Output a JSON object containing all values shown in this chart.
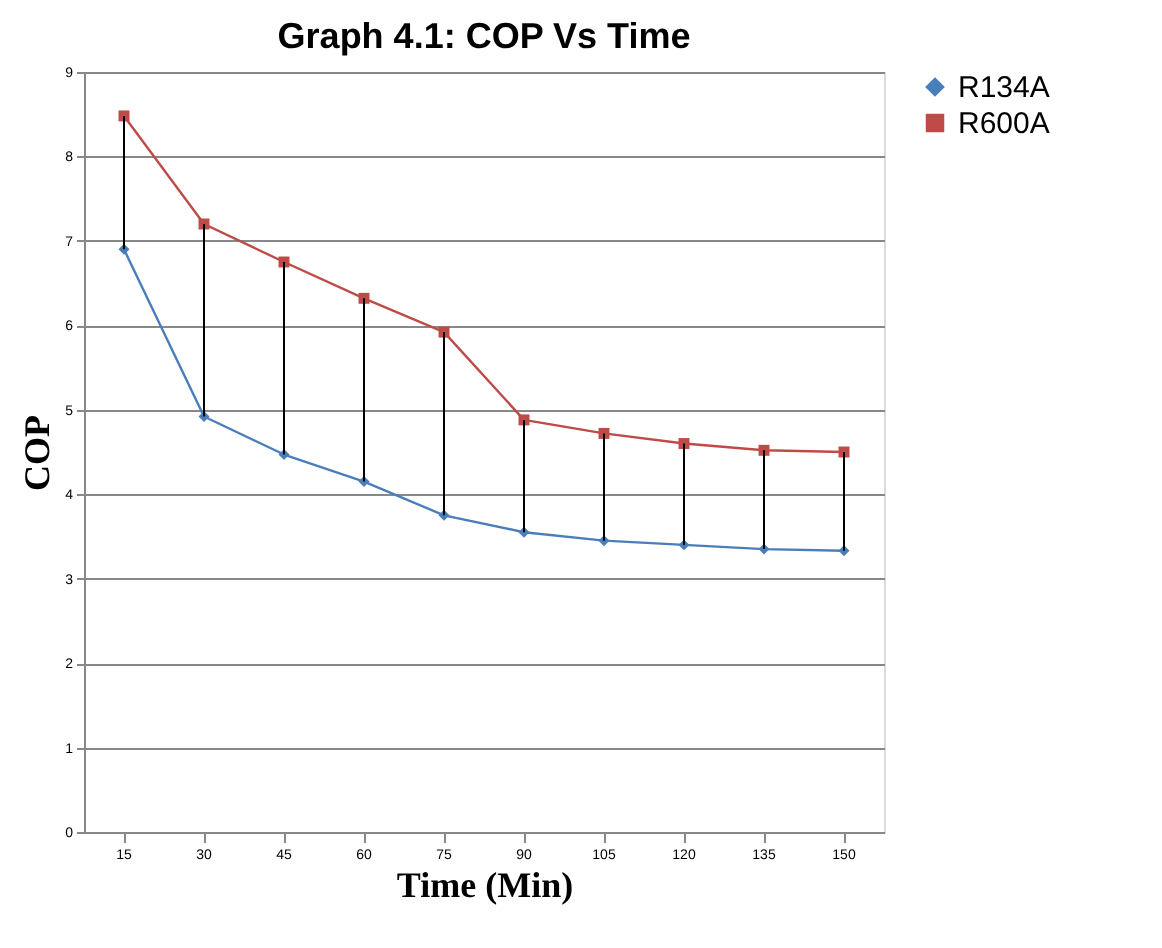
{
  "chart_data": {
    "type": "line",
    "title": "Graph 4.1: COP Vs Time",
    "xlabel": "Time (Min)",
    "ylabel": "COP",
    "categories": [
      "15",
      "30",
      "45",
      "60",
      "75",
      "90",
      "105",
      "120",
      "135",
      "150"
    ],
    "series": [
      {
        "name": "R134A",
        "color": "#4a7ebb",
        "marker": "diamond",
        "values": [
          6.9,
          4.92,
          4.47,
          4.15,
          3.75,
          3.55,
          3.45,
          3.4,
          3.35,
          3.33
        ],
        "errors": [
          [
            6.9,
            8.48
          ],
          [
            4.92,
            7.2
          ],
          [
            4.47,
            6.75
          ],
          [
            4.15,
            6.32
          ],
          [
            3.75,
            5.92
          ],
          [
            3.55,
            4.88
          ],
          [
            3.45,
            4.72
          ],
          [
            3.4,
            4.6
          ],
          [
            3.35,
            4.52
          ],
          [
            3.33,
            4.5
          ]
        ]
      },
      {
        "name": "R600A",
        "color": "#be4b48",
        "marker": "square",
        "values": [
          8.48,
          7.2,
          6.75,
          6.32,
          5.92,
          4.88,
          4.72,
          4.6,
          4.52,
          4.5
        ]
      }
    ],
    "ylim": [
      0,
      9
    ],
    "yticks": [
      0,
      1,
      2,
      3,
      4,
      5,
      6,
      7,
      8,
      9
    ],
    "grid": "y",
    "legend": "right",
    "line_style": "solid"
  }
}
